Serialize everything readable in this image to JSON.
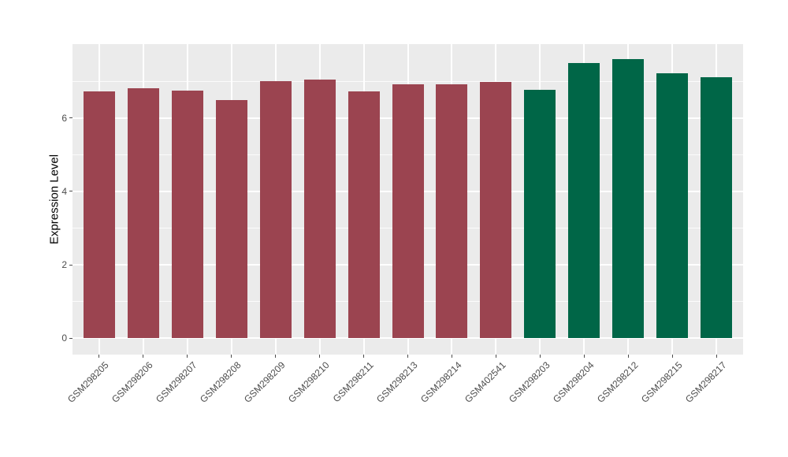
{
  "chart_data": {
    "type": "bar",
    "title": "",
    "xlabel": "",
    "ylabel": "Expression Level",
    "categories": [
      "GSM298205",
      "GSM298206",
      "GSM298207",
      "GSM298208",
      "GSM298209",
      "GSM298210",
      "GSM298211",
      "GSM298213",
      "GSM298214",
      "GSM402541",
      "GSM298203",
      "GSM298204",
      "GSM298212",
      "GSM298215",
      "GSM298217"
    ],
    "values": [
      6.72,
      6.81,
      6.74,
      6.48,
      7.0,
      7.04,
      6.73,
      6.92,
      6.92,
      6.98,
      6.76,
      7.49,
      7.61,
      7.22,
      7.11
    ],
    "bar_colors": [
      "#9B4450",
      "#9B4450",
      "#9B4450",
      "#9B4450",
      "#9B4450",
      "#9B4450",
      "#9B4450",
      "#9B4450",
      "#9B4450",
      "#9B4450",
      "#006647",
      "#006647",
      "#006647",
      "#006647",
      "#006647"
    ],
    "group_colors": {
      "group1": "#9B4450",
      "group2": "#006647"
    },
    "ylim": [
      -0.44,
      8.01
    ],
    "yticks": [
      "0",
      "2",
      "4",
      "6"
    ],
    "ytick_values": [
      0,
      2,
      4,
      6
    ],
    "yminor_values": [
      1,
      3,
      5,
      7
    ],
    "grid": "on",
    "legend": "none",
    "panel_bg": "#EBEBEB",
    "grid_color": "#FFFFFF",
    "axis_text_color": "#4D4D4D"
  }
}
